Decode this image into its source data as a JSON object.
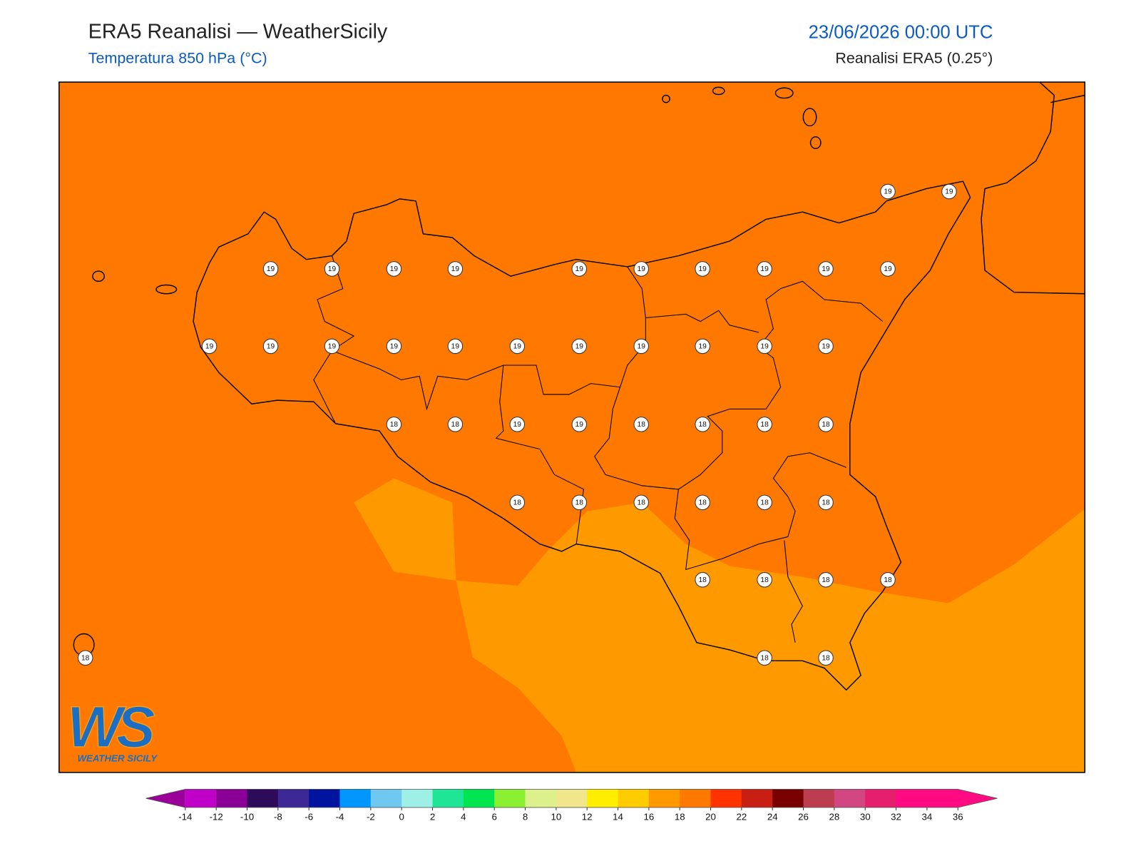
{
  "header": {
    "title": "ERA5 Reanalisi — WeatherSicily",
    "subtitle": "Temperatura 850 hPa (°C)",
    "datetime": "23/06/2026 00:00 UTC",
    "source": "Reanalisi ERA5 (0.25°)"
  },
  "map": {
    "fill": "#ff7800",
    "fill_light": "#ff9900",
    "coast_color": "#000000"
  },
  "points": {
    "values": [
      19,
      19,
      19,
      19,
      19,
      19,
      19,
      19,
      19,
      19,
      19,
      19,
      19,
      19,
      19,
      19,
      19,
      19,
      19,
      19,
      19,
      19,
      19,
      18,
      18,
      19,
      19,
      18,
      18,
      18,
      18,
      18,
      18,
      18,
      18,
      18,
      18,
      18,
      18,
      18,
      18,
      18,
      18,
      18
    ]
  },
  "colorbar": {
    "ticks": [
      -14,
      -12,
      -10,
      -8,
      -6,
      -4,
      -2,
      0,
      2,
      4,
      6,
      8,
      10,
      12,
      14,
      16,
      18,
      20,
      22,
      24,
      26,
      28,
      30,
      32,
      34,
      36
    ],
    "under": "#9b009b",
    "over": "#ff0a82",
    "colors": [
      "#c000c8",
      "#8a0096",
      "#2d0a5a",
      "#3c2896",
      "#0014a0",
      "#0096ff",
      "#6ec8f0",
      "#9ef0e6",
      "#1ee696",
      "#00e650",
      "#8cf032",
      "#dcf08c",
      "#f0e68c",
      "#ffee00",
      "#ffcc00",
      "#ff9900",
      "#ff7800",
      "#ff3200",
      "#c81e14",
      "#780000",
      "#be3c50",
      "#d24682",
      "#e61e6e",
      "#ff0a82",
      "#ff0a82"
    ]
  },
  "logo": {
    "mark": "WS",
    "text": "WEATHER SICILY"
  }
}
